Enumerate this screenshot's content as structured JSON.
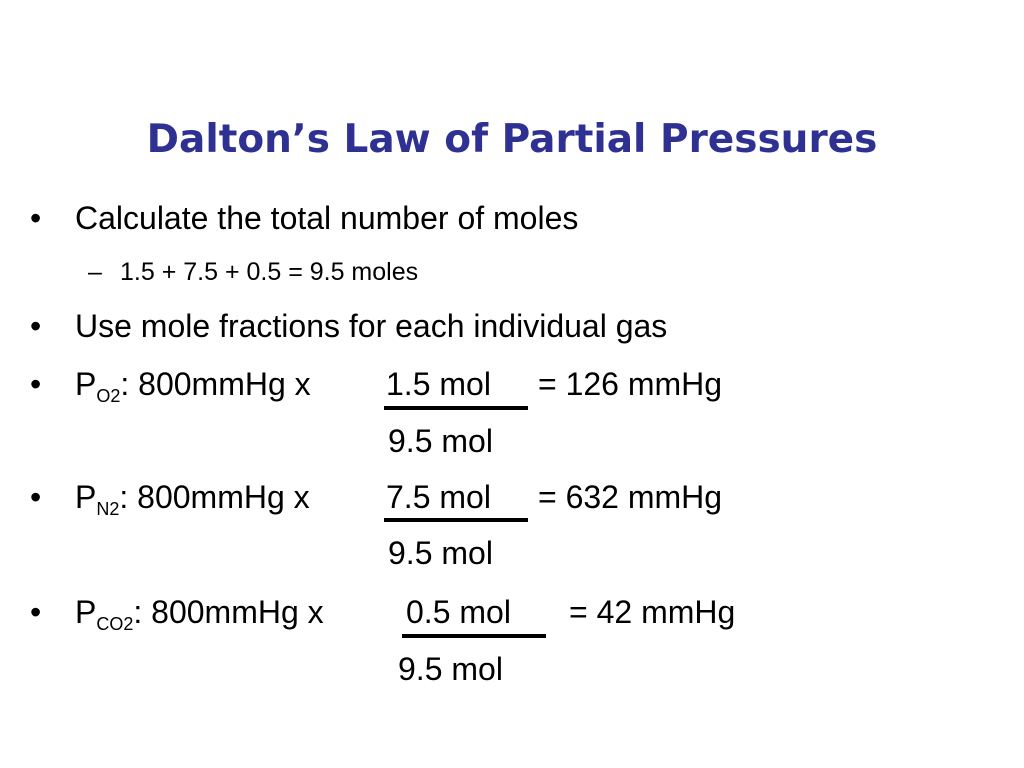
{
  "slide": {
    "title": "Dalton’s Law of Partial Pressures",
    "bullet_symbol": "•",
    "dash_symbol": "–",
    "items": [
      {
        "text": "Calculate the total number of moles"
      },
      {
        "text": "1.5 + 7.5 + 0.5 = 9.5 moles"
      },
      {
        "text": "Use mole fractions for each individual gas"
      }
    ],
    "equations": [
      {
        "symbol": "P",
        "gas": "O2",
        "lead": ": 800mmHg x",
        "numerator": "1.5 mol",
        "result": "= 126 mmHg",
        "denominator": "9.5 mol"
      },
      {
        "symbol": "P",
        "gas": "N2",
        "lead": ": 800mmHg x",
        "numerator": "7.5 mol",
        "result": "= 632 mmHg",
        "denominator": "9.5 mol"
      },
      {
        "symbol": "P",
        "gas": "CO2",
        "lead": ": 800mmHg x",
        "numerator": "0.5 mol",
        "result": "= 42 mmHg",
        "denominator": "9.5 mol"
      }
    ]
  },
  "colors": {
    "title": "#2e3192",
    "text": "#000000",
    "background": "#ffffff"
  }
}
